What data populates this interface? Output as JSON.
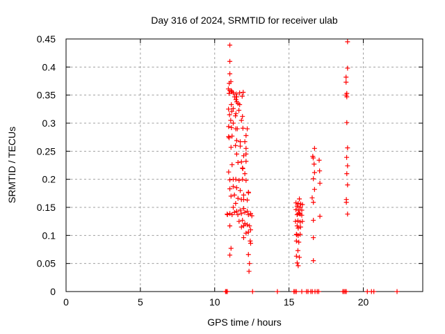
{
  "chart_data": {
    "type": "scatter",
    "title": "Day 316 of 2024, SRMTID for receiver ulab",
    "xlabel": "GPS time / hours",
    "ylabel": "SRMTID / TECUs",
    "xlim": [
      0,
      24
    ],
    "ylim": [
      0,
      0.45
    ],
    "grid": true,
    "legend": "none",
    "marker": "plus",
    "marker_color": "#ff0000",
    "xticks": {
      "values": [
        0,
        5,
        10,
        15,
        20
      ],
      "labels": [
        "0",
        "5",
        "10",
        "15",
        "20"
      ]
    },
    "yticks": {
      "values": [
        0,
        0.05,
        0.1,
        0.15,
        0.2,
        0.25,
        0.3,
        0.35,
        0.4,
        0.45
      ],
      "labels": [
        "0",
        "0.05",
        "0.1",
        "0.15",
        "0.2",
        "0.25",
        "0.3",
        "0.35",
        "0.4",
        "0.45"
      ]
    },
    "series": [
      {
        "name": "SRMTID",
        "points": [
          [
            11.02,
            0.439
          ],
          [
            11.02,
            0.41
          ],
          [
            11.02,
            0.388
          ],
          [
            10.98,
            0.371
          ],
          [
            11.09,
            0.374
          ],
          [
            10.92,
            0.361
          ],
          [
            11.02,
            0.358
          ],
          [
            11.12,
            0.358
          ],
          [
            10.97,
            0.353
          ],
          [
            11.16,
            0.356
          ],
          [
            11.25,
            0.354
          ],
          [
            11.45,
            0.352
          ],
          [
            11.68,
            0.354
          ],
          [
            11.92,
            0.355
          ],
          [
            11.85,
            0.348
          ],
          [
            11.48,
            0.347
          ],
          [
            11.34,
            0.347
          ],
          [
            11.43,
            0.342
          ],
          [
            11.48,
            0.338
          ],
          [
            11.57,
            0.335
          ],
          [
            11.12,
            0.333
          ],
          [
            11.68,
            0.333
          ],
          [
            10.93,
            0.325
          ],
          [
            11.25,
            0.326
          ],
          [
            11.63,
            0.323
          ],
          [
            11.15,
            0.321
          ],
          [
            11.43,
            0.317
          ],
          [
            11.0,
            0.315
          ],
          [
            11.4,
            0.313
          ],
          [
            11.87,
            0.312
          ],
          [
            11.08,
            0.305
          ],
          [
            11.25,
            0.3
          ],
          [
            11.8,
            0.305
          ],
          [
            12.19,
            0.29
          ],
          [
            10.94,
            0.294
          ],
          [
            11.13,
            0.292
          ],
          [
            11.42,
            0.29
          ],
          [
            11.52,
            0.29
          ],
          [
            11.9,
            0.291
          ],
          [
            10.94,
            0.276
          ],
          [
            10.97,
            0.274
          ],
          [
            11.17,
            0.277
          ],
          [
            12.11,
            0.278
          ],
          [
            11.48,
            0.269
          ],
          [
            11.72,
            0.267
          ],
          [
            12.03,
            0.267
          ],
          [
            11.4,
            0.26
          ],
          [
            11.1,
            0.257
          ],
          [
            11.72,
            0.259
          ],
          [
            12.11,
            0.255
          ],
          [
            11.48,
            0.245
          ],
          [
            12.11,
            0.245
          ],
          [
            11.95,
            0.242
          ],
          [
            11.57,
            0.23
          ],
          [
            11.8,
            0.231
          ],
          [
            12.11,
            0.232
          ],
          [
            11.17,
            0.226
          ],
          [
            10.94,
            0.213
          ],
          [
            11.87,
            0.22
          ],
          [
            11.89,
            0.219
          ],
          [
            12.03,
            0.21
          ],
          [
            11.02,
            0.199
          ],
          [
            11.25,
            0.2
          ],
          [
            11.42,
            0.2
          ],
          [
            11.64,
            0.198
          ],
          [
            11.87,
            0.2
          ],
          [
            12.11,
            0.198
          ],
          [
            11.25,
            0.187
          ],
          [
            11.02,
            0.183
          ],
          [
            11.48,
            0.185
          ],
          [
            11.72,
            0.18
          ],
          [
            12.27,
            0.177
          ],
          [
            12.28,
            0.176
          ],
          [
            11.95,
            0.172
          ],
          [
            11.1,
            0.17
          ],
          [
            11.33,
            0.172
          ],
          [
            11.57,
            0.166
          ],
          [
            11.8,
            0.164
          ],
          [
            11.95,
            0.164
          ],
          [
            12.19,
            0.163
          ],
          [
            11.41,
            0.157
          ],
          [
            11.25,
            0.15
          ],
          [
            10.84,
            0.138
          ],
          [
            10.86,
            0.137
          ],
          [
            11.02,
            0.139
          ],
          [
            11.17,
            0.137
          ],
          [
            11.33,
            0.141
          ],
          [
            11.48,
            0.143
          ],
          [
            11.56,
            0.137
          ],
          [
            11.72,
            0.145
          ],
          [
            11.8,
            0.139
          ],
          [
            11.95,
            0.148
          ],
          [
            12.03,
            0.141
          ],
          [
            12.19,
            0.143
          ],
          [
            12.27,
            0.137
          ],
          [
            12.42,
            0.139
          ],
          [
            12.5,
            0.135
          ],
          [
            11.64,
            0.125
          ],
          [
            11.87,
            0.127
          ],
          [
            12.03,
            0.121
          ],
          [
            11.02,
            0.117
          ],
          [
            11.8,
            0.115
          ],
          [
            11.95,
            0.117
          ],
          [
            12.19,
            0.119
          ],
          [
            12.34,
            0.117
          ],
          [
            12.42,
            0.11
          ],
          [
            12.27,
            0.106
          ],
          [
            12.11,
            0.104
          ],
          [
            11.95,
            0.096
          ],
          [
            12.39,
            0.09
          ],
          [
            12.42,
            0.086
          ],
          [
            11.1,
            0.077
          ],
          [
            11.02,
            0.065
          ],
          [
            12.27,
            0.066
          ],
          [
            12.34,
            0.05
          ],
          [
            12.31,
            0.036
          ],
          [
            16.72,
            0.255
          ],
          [
            16.6,
            0.241
          ],
          [
            16.63,
            0.238
          ],
          [
            17.03,
            0.234
          ],
          [
            16.69,
            0.227
          ],
          [
            16.72,
            0.212
          ],
          [
            17.06,
            0.215
          ],
          [
            16.64,
            0.201
          ],
          [
            17.08,
            0.193
          ],
          [
            16.72,
            0.182
          ],
          [
            16.56,
            0.167
          ],
          [
            16.64,
            0.159
          ],
          [
            15.7,
            0.165
          ],
          [
            15.47,
            0.158
          ],
          [
            15.62,
            0.157
          ],
          [
            15.78,
            0.156
          ],
          [
            15.9,
            0.155
          ],
          [
            15.55,
            0.152
          ],
          [
            15.75,
            0.15
          ],
          [
            15.47,
            0.146
          ],
          [
            15.66,
            0.145
          ],
          [
            15.86,
            0.145
          ],
          [
            15.62,
            0.139
          ],
          [
            15.75,
            0.138
          ],
          [
            15.55,
            0.137
          ],
          [
            15.7,
            0.139
          ],
          [
            15.86,
            0.136
          ],
          [
            16.64,
            0.127
          ],
          [
            17.08,
            0.134
          ],
          [
            15.44,
            0.125
          ],
          [
            15.6,
            0.126
          ],
          [
            15.75,
            0.124
          ],
          [
            15.9,
            0.125
          ],
          [
            15.55,
            0.117
          ],
          [
            15.62,
            0.113
          ],
          [
            15.78,
            0.115
          ],
          [
            15.5,
            0.102
          ],
          [
            15.52,
            0.101
          ],
          [
            15.62,
            0.1
          ],
          [
            15.75,
            0.102
          ],
          [
            16.64,
            0.096
          ],
          [
            15.5,
            0.09
          ],
          [
            15.66,
            0.088
          ],
          [
            15.6,
            0.073
          ],
          [
            15.5,
            0.063
          ],
          [
            15.7,
            0.061
          ],
          [
            15.55,
            0.051
          ],
          [
            16.64,
            0.055
          ],
          [
            15.62,
            0.046
          ],
          [
            18.94,
            0.445
          ],
          [
            18.94,
            0.398
          ],
          [
            18.84,
            0.382
          ],
          [
            18.84,
            0.373
          ],
          [
            18.89,
            0.353
          ],
          [
            18.84,
            0.35
          ],
          [
            18.89,
            0.347
          ],
          [
            18.89,
            0.301
          ],
          [
            18.94,
            0.256
          ],
          [
            18.88,
            0.239
          ],
          [
            18.94,
            0.224
          ],
          [
            18.89,
            0.21
          ],
          [
            18.94,
            0.19
          ],
          [
            18.86,
            0.164
          ],
          [
            18.86,
            0.159
          ],
          [
            18.94,
            0.138
          ],
          [
            10.73,
            0
          ],
          [
            10.79,
            0
          ],
          [
            10.85,
            0
          ],
          [
            12.55,
            0
          ],
          [
            14.22,
            0
          ],
          [
            15.33,
            0
          ],
          [
            15.41,
            0
          ],
          [
            15.5,
            0
          ],
          [
            15.86,
            0
          ],
          [
            16.18,
            0
          ],
          [
            16.28,
            0
          ],
          [
            16.47,
            0
          ],
          [
            16.57,
            0
          ],
          [
            16.75,
            0
          ],
          [
            16.9,
            0
          ],
          [
            17.0,
            0
          ],
          [
            18.62,
            0
          ],
          [
            18.7,
            0
          ],
          [
            18.78,
            0
          ],
          [
            18.86,
            0
          ],
          [
            20.27,
            0
          ],
          [
            20.55,
            0
          ],
          [
            20.71,
            0
          ],
          [
            22.27,
            0
          ]
        ]
      }
    ]
  }
}
